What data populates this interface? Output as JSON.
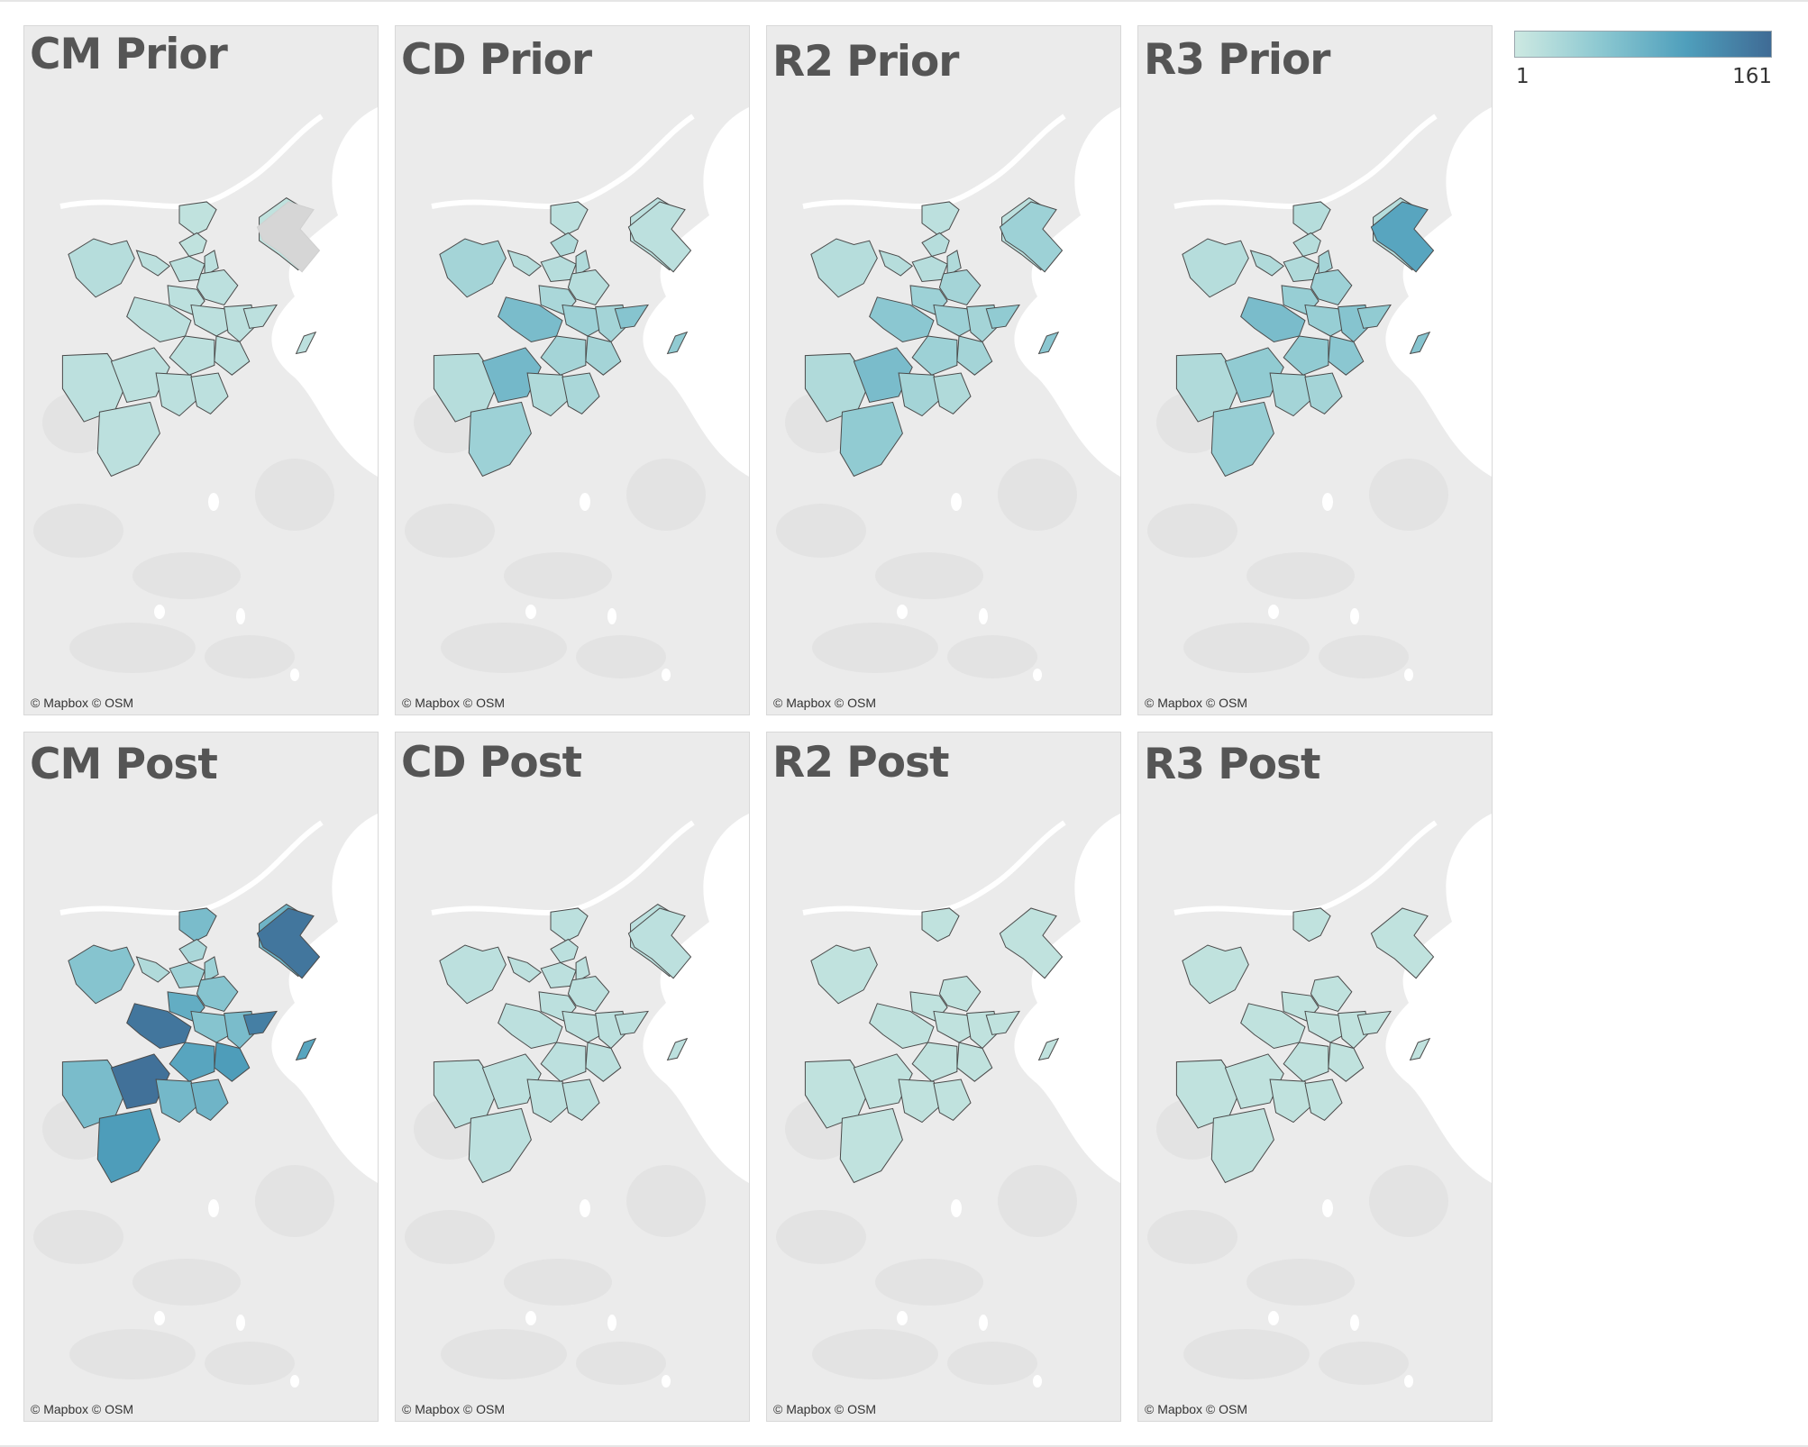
{
  "legend": {
    "min_label": "1",
    "max_label": "161",
    "min_value": 1,
    "max_value": 161,
    "colors": [
      "#cde9e2",
      "#8cc8d1",
      "#4f9fbc",
      "#3f6b95"
    ]
  },
  "attribution": "© Mapbox © OSM",
  "panels": [
    {
      "title": "CM Prior",
      "values": {
        "N1": 12,
        "N2": 12,
        "E1": null,
        "E2": 12,
        "W1": 20,
        "W2": 15,
        "C1": 15,
        "C2": 15,
        "C3": 15,
        "C4": 15,
        "C5": 15,
        "C6": 15,
        "C7": 15,
        "C8": 15,
        "C9": 15,
        "E3": 15,
        "S1": 15,
        "S2": 15,
        "S3": 15,
        "S4": 15,
        "S5": 15,
        "S6": 15
      }
    },
    {
      "title": "CD Prior",
      "values": {
        "N1": 15,
        "N2": 15,
        "E1": 15,
        "E2": 25,
        "W1": 35,
        "W2": 20,
        "C1": 20,
        "C2": 25,
        "C3": 20,
        "C4": 30,
        "C5": 70,
        "C6": 40,
        "C7": 35,
        "C8": 35,
        "C9": 35,
        "E3": 60,
        "S1": 20,
        "S2": 75,
        "S3": 25,
        "S4": 30,
        "S5": 40,
        "S6": 50
      }
    },
    {
      "title": "R2 Prior",
      "values": {
        "N1": 15,
        "N2": 15,
        "E1": 40,
        "E2": 20,
        "W1": 20,
        "W2": 20,
        "C1": 20,
        "C2": 25,
        "C3": 35,
        "C4": 40,
        "C5": 55,
        "C6": 40,
        "C7": 35,
        "C8": 35,
        "C9": 40,
        "E3": 50,
        "S1": 25,
        "S2": 70,
        "S3": 35,
        "S4": 25,
        "S5": 50,
        "S6": 55
      }
    },
    {
      "title": "R3 Prior",
      "values": {
        "N1": 20,
        "N2": 20,
        "E1": 100,
        "E2": 20,
        "W1": 20,
        "W2": 25,
        "C1": 25,
        "C2": 35,
        "C3": 40,
        "C4": 45,
        "C5": 70,
        "C6": 45,
        "C7": 60,
        "C8": 55,
        "C9": 50,
        "E3": 50,
        "S1": 25,
        "S2": 50,
        "S3": 35,
        "S4": 35,
        "S5": 45,
        "S6": 60
      }
    },
    {
      "title": "CM Post",
      "values": {
        "N1": 70,
        "N2": 80,
        "E1": 150,
        "E2": 30,
        "W1": 60,
        "W2": 25,
        "C1": 40,
        "C2": 40,
        "C3": 60,
        "C4": 90,
        "C5": 150,
        "C6": 60,
        "C7": 70,
        "C8": 110,
        "C9": 100,
        "E3": 140,
        "S1": 70,
        "S2": 155,
        "S3": 75,
        "S4": 80,
        "S5": 110,
        "S6": 100
      }
    },
    {
      "title": "CD Post",
      "values": {
        "N1": 15,
        "N2": 15,
        "E1": 15,
        "E2": 15,
        "W1": 15,
        "W2": 15,
        "C1": 15,
        "C2": 15,
        "C3": 15,
        "C4": 15,
        "C5": 15,
        "C6": 15,
        "C7": 15,
        "C8": 15,
        "C9": 15,
        "E3": 15,
        "S1": 15,
        "S2": 15,
        "S3": 15,
        "S4": 15,
        "S5": 15,
        "S6": 15
      }
    },
    {
      "title": "R2 Post",
      "values": {
        "N1": 12,
        "N2": null,
        "E1": 12,
        "E2": null,
        "W1": 12,
        "W2": null,
        "C1": null,
        "C2": null,
        "C3": 12,
        "C4": 12,
        "C5": 12,
        "C6": 12,
        "C7": 12,
        "C8": 12,
        "C9": 12,
        "E3": 12,
        "S1": 12,
        "S2": 12,
        "S3": 12,
        "S4": 12,
        "S5": 12,
        "S6": 12
      }
    },
    {
      "title": "R3 Post",
      "values": {
        "N1": 12,
        "N2": null,
        "E1": 12,
        "E2": null,
        "W1": 12,
        "W2": null,
        "C1": null,
        "C2": null,
        "C3": 12,
        "C4": 12,
        "C5": 12,
        "C6": 12,
        "C7": 12,
        "C8": 12,
        "C9": 12,
        "E3": 12,
        "S1": 12,
        "S2": 12,
        "S3": 12,
        "S4": 12,
        "S5": 12,
        "S6": 12
      }
    }
  ]
}
